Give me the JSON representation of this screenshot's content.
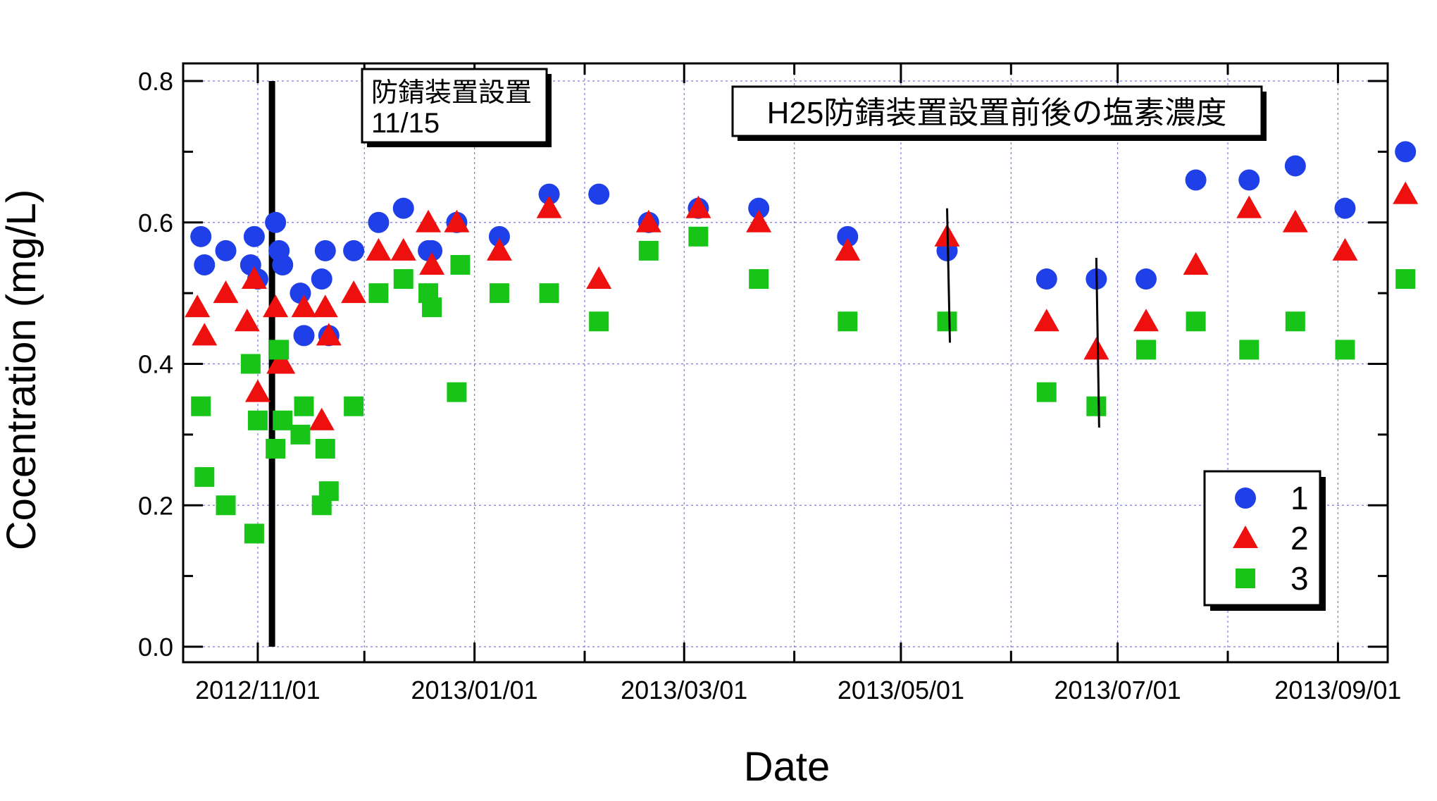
{
  "chart_data": {
    "type": "scatter",
    "title": "",
    "xlabel": "Date",
    "ylabel": "Cocentration (mg/L)",
    "x_type": "date",
    "xlim": [
      "2012-10-11",
      "2013-09-15"
    ],
    "ylim": [
      0.0,
      0.8
    ],
    "xticks": [
      "2012/11/01",
      "2013/01/01",
      "2013/03/01",
      "2013/05/01",
      "2013/07/01",
      "2013/09/01"
    ],
    "yticks": [
      "0.0",
      "0.2",
      "0.4",
      "0.6",
      "0.8"
    ],
    "grid": true,
    "legend_position": "bottom-right",
    "annotation_box": {
      "line1": "防錆装置設置",
      "line2": "11/15",
      "date": "2012-11-15"
    },
    "title_box": "H25防錆装置設置前後の塩素濃度",
    "vertical_marker_date": "2012-11-05",
    "error_bars": [
      {
        "x": "2013-05-14",
        "low": 0.43,
        "high": 0.62
      },
      {
        "x": "2013-06-25",
        "low": 0.31,
        "high": 0.55
      }
    ],
    "series": [
      {
        "name": "1",
        "marker": "circle",
        "color": "#1f3fe8",
        "points": [
          {
            "x": "2012-10-16",
            "y": 0.58
          },
          {
            "x": "2012-10-17",
            "y": 0.54
          },
          {
            "x": "2012-10-23",
            "y": 0.56
          },
          {
            "x": "2012-10-30",
            "y": 0.54
          },
          {
            "x": "2012-10-31",
            "y": 0.58
          },
          {
            "x": "2012-11-01",
            "y": 0.52
          },
          {
            "x": "2012-11-06",
            "y": 0.6
          },
          {
            "x": "2012-11-07",
            "y": 0.56
          },
          {
            "x": "2012-11-08",
            "y": 0.54
          },
          {
            "x": "2012-11-13",
            "y": 0.5
          },
          {
            "x": "2012-11-19",
            "y": 0.52
          },
          {
            "x": "2012-11-20",
            "y": 0.56
          },
          {
            "x": "2012-11-14",
            "y": 0.44
          },
          {
            "x": "2012-11-21",
            "y": 0.44
          },
          {
            "x": "2012-11-28",
            "y": 0.56
          },
          {
            "x": "2012-12-05",
            "y": 0.6
          },
          {
            "x": "2012-12-12",
            "y": 0.62
          },
          {
            "x": "2012-12-19",
            "y": 0.56
          },
          {
            "x": "2012-12-20",
            "y": 0.56
          },
          {
            "x": "2012-12-27",
            "y": 0.6
          },
          {
            "x": "2013-01-08",
            "y": 0.58
          },
          {
            "x": "2013-01-22",
            "y": 0.64
          },
          {
            "x": "2013-02-05",
            "y": 0.64
          },
          {
            "x": "2013-02-19",
            "y": 0.6
          },
          {
            "x": "2013-03-05",
            "y": 0.62
          },
          {
            "x": "2013-03-22",
            "y": 0.62
          },
          {
            "x": "2013-04-16",
            "y": 0.58
          },
          {
            "x": "2013-05-14",
            "y": 0.56
          },
          {
            "x": "2013-06-11",
            "y": 0.52
          },
          {
            "x": "2013-06-25",
            "y": 0.52
          },
          {
            "x": "2013-07-09",
            "y": 0.52
          },
          {
            "x": "2013-07-23",
            "y": 0.66
          },
          {
            "x": "2013-08-07",
            "y": 0.66
          },
          {
            "x": "2013-08-20",
            "y": 0.68
          },
          {
            "x": "2013-09-03",
            "y": 0.62
          },
          {
            "x": "2013-09-20",
            "y": 0.7
          }
        ]
      },
      {
        "name": "2",
        "marker": "triangle",
        "color": "#ee0f0f",
        "points": [
          {
            "x": "2012-10-15",
            "y": 0.48
          },
          {
            "x": "2012-10-17",
            "y": 0.44
          },
          {
            "x": "2012-10-23",
            "y": 0.5
          },
          {
            "x": "2012-10-29",
            "y": 0.46
          },
          {
            "x": "2012-10-31",
            "y": 0.52
          },
          {
            "x": "2012-11-01",
            "y": 0.36
          },
          {
            "x": "2012-11-06",
            "y": 0.48
          },
          {
            "x": "2012-11-07",
            "y": 0.4
          },
          {
            "x": "2012-11-08",
            "y": 0.4
          },
          {
            "x": "2012-11-19",
            "y": 0.32
          },
          {
            "x": "2012-11-20",
            "y": 0.48
          },
          {
            "x": "2012-11-14",
            "y": 0.48
          },
          {
            "x": "2012-11-21",
            "y": 0.44
          },
          {
            "x": "2012-11-28",
            "y": 0.5
          },
          {
            "x": "2012-12-05",
            "y": 0.56
          },
          {
            "x": "2012-12-12",
            "y": 0.56
          },
          {
            "x": "2012-12-19",
            "y": 0.6
          },
          {
            "x": "2012-12-20",
            "y": 0.54
          },
          {
            "x": "2012-12-27",
            "y": 0.6
          },
          {
            "x": "2013-01-08",
            "y": 0.56
          },
          {
            "x": "2013-01-22",
            "y": 0.62
          },
          {
            "x": "2013-02-05",
            "y": 0.52
          },
          {
            "x": "2013-02-19",
            "y": 0.6
          },
          {
            "x": "2013-03-05",
            "y": 0.62
          },
          {
            "x": "2013-03-22",
            "y": 0.6
          },
          {
            "x": "2013-04-16",
            "y": 0.56
          },
          {
            "x": "2013-05-14",
            "y": 0.58
          },
          {
            "x": "2013-06-11",
            "y": 0.46
          },
          {
            "x": "2013-06-25",
            "y": 0.42
          },
          {
            "x": "2013-07-09",
            "y": 0.46
          },
          {
            "x": "2013-07-23",
            "y": 0.54
          },
          {
            "x": "2013-08-07",
            "y": 0.62
          },
          {
            "x": "2013-08-20",
            "y": 0.6
          },
          {
            "x": "2013-09-03",
            "y": 0.56
          },
          {
            "x": "2013-09-20",
            "y": 0.64
          }
        ]
      },
      {
        "name": "3",
        "marker": "square",
        "color": "#17c417",
        "points": [
          {
            "x": "2012-10-16",
            "y": 0.34
          },
          {
            "x": "2012-10-17",
            "y": 0.24
          },
          {
            "x": "2012-10-23",
            "y": 0.2
          },
          {
            "x": "2012-10-30",
            "y": 0.4
          },
          {
            "x": "2012-10-31",
            "y": 0.16
          },
          {
            "x": "2012-11-01",
            "y": 0.32
          },
          {
            "x": "2012-11-06",
            "y": 0.28
          },
          {
            "x": "2012-11-07",
            "y": 0.42
          },
          {
            "x": "2012-11-08",
            "y": 0.32
          },
          {
            "x": "2012-11-13",
            "y": 0.3
          },
          {
            "x": "2012-11-19",
            "y": 0.2
          },
          {
            "x": "2012-11-20",
            "y": 0.28
          },
          {
            "x": "2012-11-14",
            "y": 0.34
          },
          {
            "x": "2012-11-21",
            "y": 0.22
          },
          {
            "x": "2012-11-28",
            "y": 0.34
          },
          {
            "x": "2012-12-05",
            "y": 0.5
          },
          {
            "x": "2012-12-12",
            "y": 0.52
          },
          {
            "x": "2012-12-19",
            "y": 0.5
          },
          {
            "x": "2012-12-20",
            "y": 0.48
          },
          {
            "x": "2012-12-27",
            "y": 0.36
          },
          {
            "x": "2012-12-28",
            "y": 0.54
          },
          {
            "x": "2013-01-08",
            "y": 0.5
          },
          {
            "x": "2013-01-22",
            "y": 0.5
          },
          {
            "x": "2013-02-05",
            "y": 0.46
          },
          {
            "x": "2013-02-19",
            "y": 0.56
          },
          {
            "x": "2013-03-05",
            "y": 0.58
          },
          {
            "x": "2013-03-22",
            "y": 0.52
          },
          {
            "x": "2013-04-16",
            "y": 0.46
          },
          {
            "x": "2013-05-14",
            "y": 0.46
          },
          {
            "x": "2013-06-11",
            "y": 0.36
          },
          {
            "x": "2013-06-25",
            "y": 0.34
          },
          {
            "x": "2013-07-09",
            "y": 0.42
          },
          {
            "x": "2013-07-23",
            "y": 0.46
          },
          {
            "x": "2013-08-07",
            "y": 0.42
          },
          {
            "x": "2013-08-20",
            "y": 0.46
          },
          {
            "x": "2013-09-03",
            "y": 0.42
          },
          {
            "x": "2013-09-20",
            "y": 0.52
          }
        ]
      }
    ]
  }
}
